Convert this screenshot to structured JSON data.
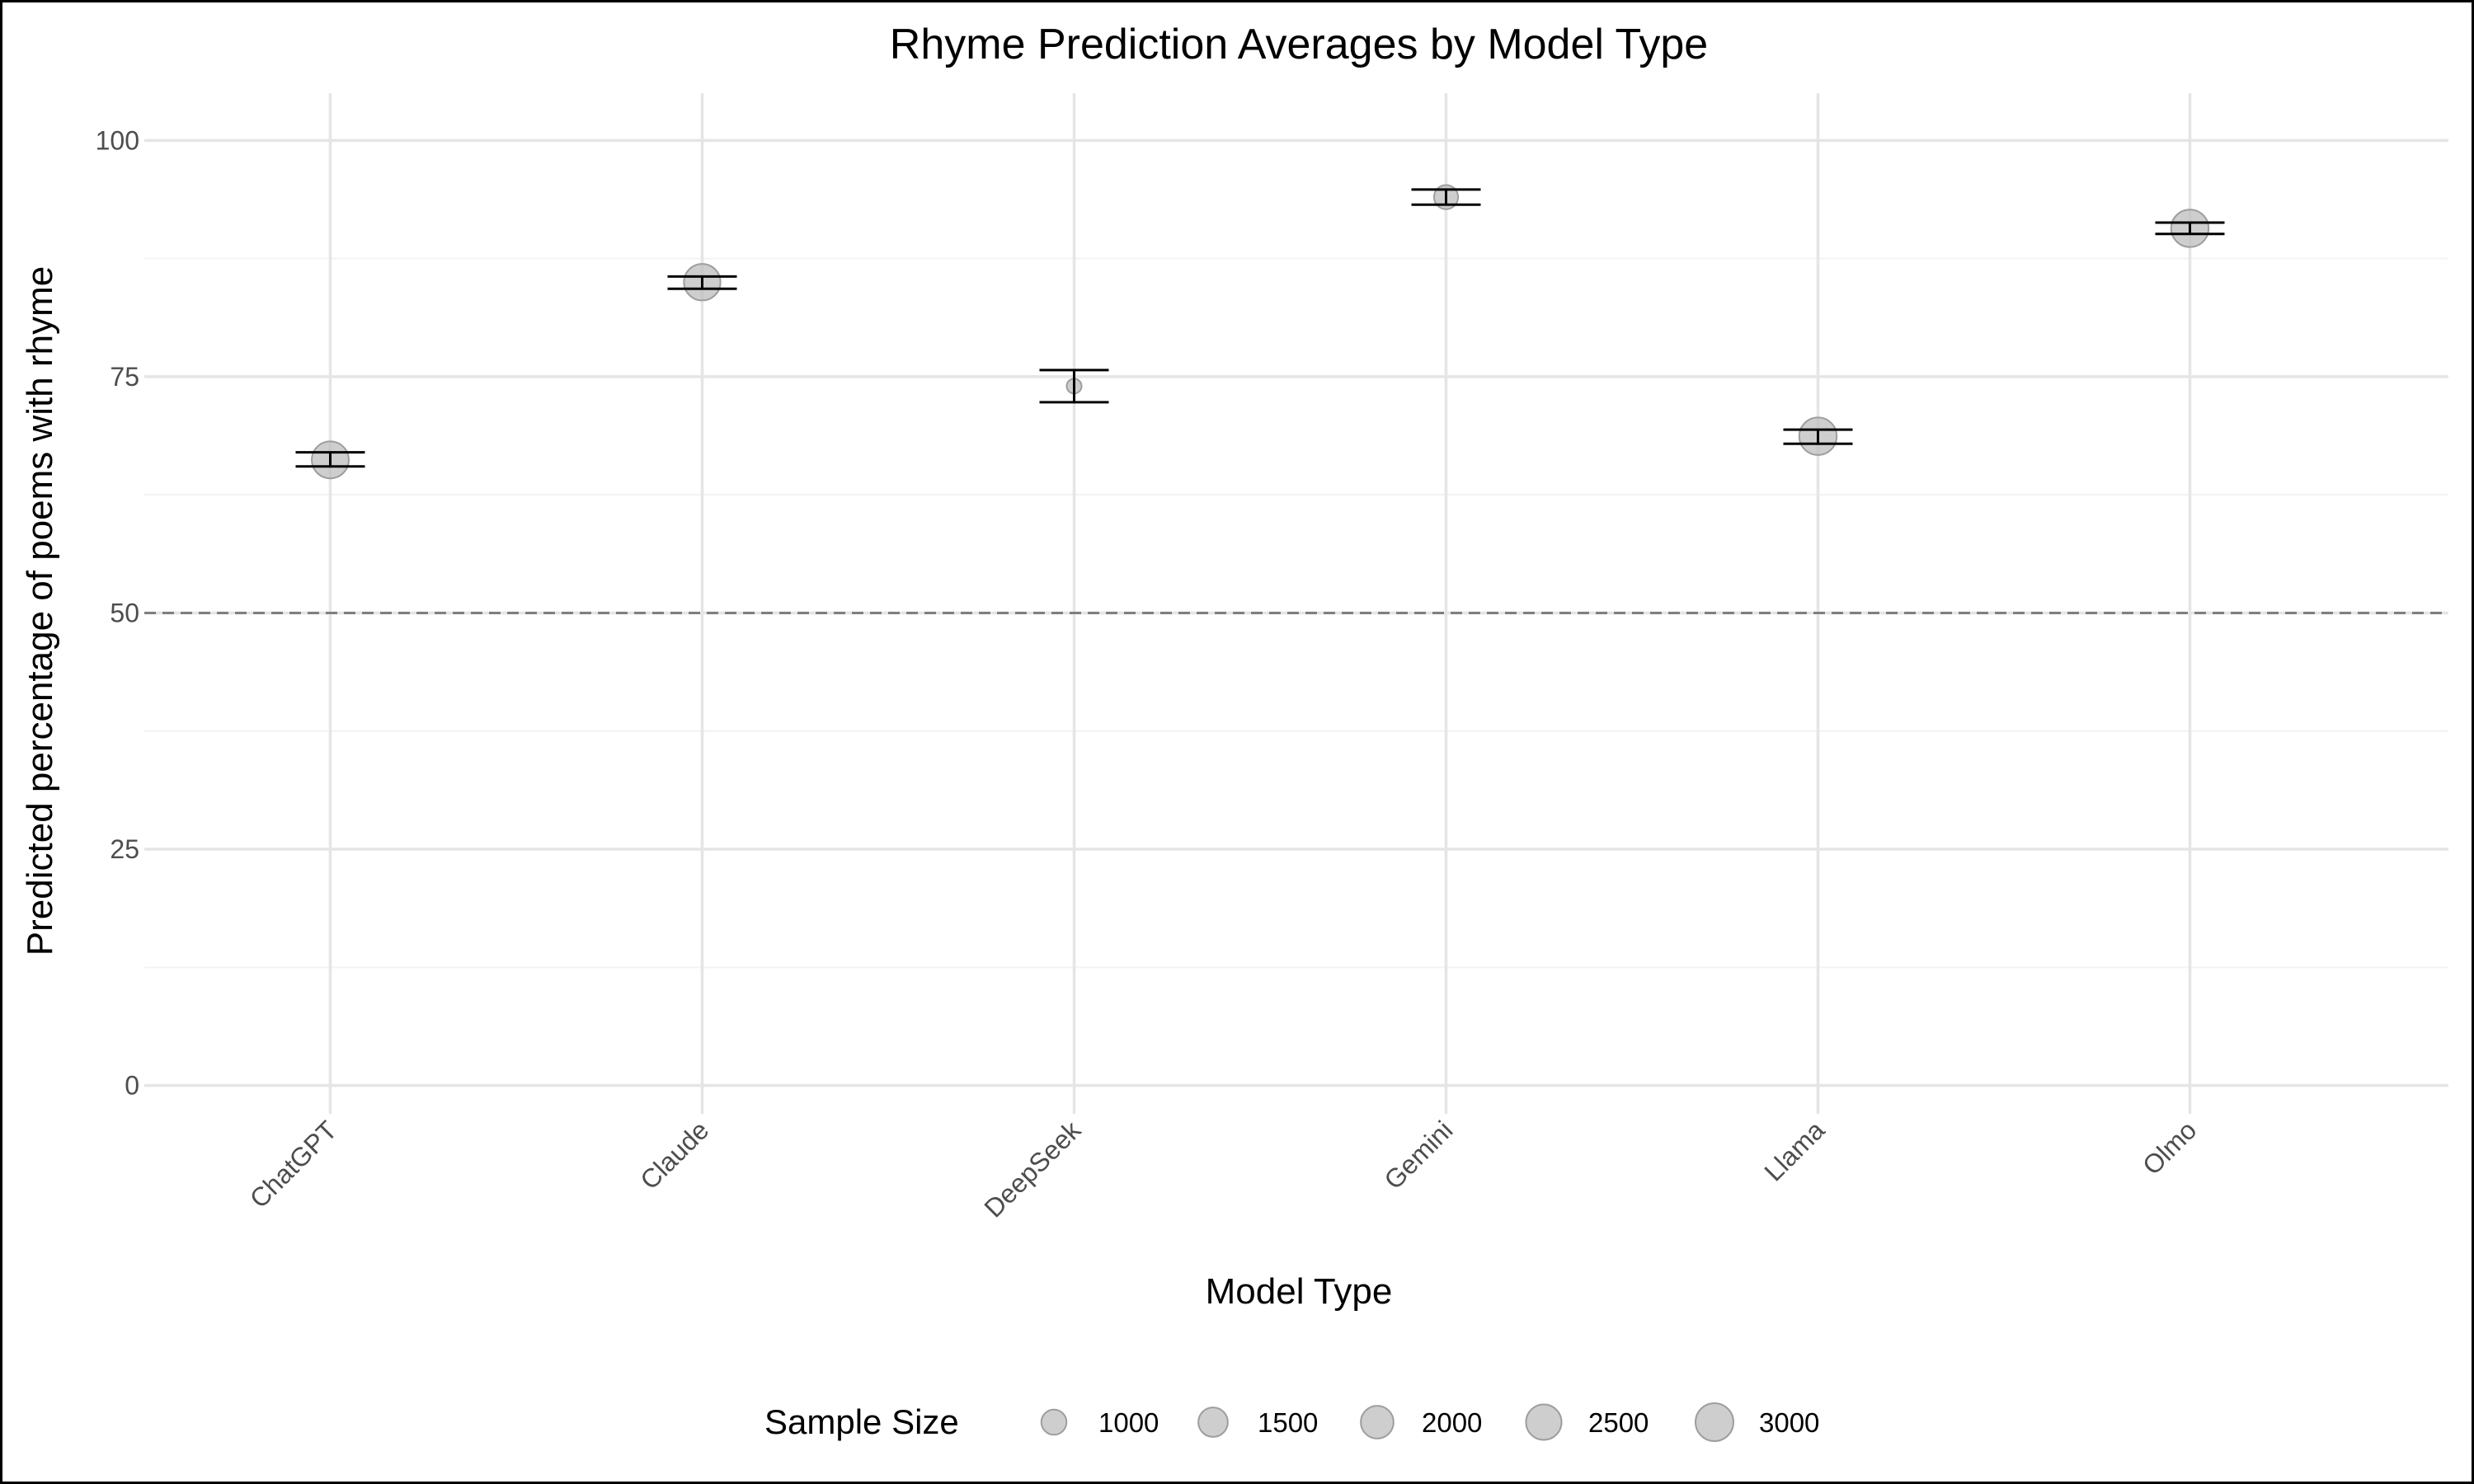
{
  "chart_data": {
    "type": "scatter",
    "title": "Rhyme Prediction Averages by Model Type",
    "xlabel": "Model Type",
    "ylabel": "Predicted percentage of poems with rhyme",
    "categories": [
      "ChatGPT",
      "Claude",
      "DeepSeek",
      "Gemini",
      "Llama",
      "Olmo"
    ],
    "ylim": [
      -3,
      105
    ],
    "yticks": [
      0,
      25,
      50,
      75,
      100
    ],
    "reference_line": {
      "y": 50,
      "style": "dashed"
    },
    "grid": true,
    "points": [
      {
        "category": "ChatGPT",
        "mean": 66.2,
        "ci_low": 65.5,
        "ci_high": 67.0,
        "n": 2800
      },
      {
        "category": "Claude",
        "mean": 85.0,
        "ci_low": 84.3,
        "ci_high": 85.6,
        "n": 2700
      },
      {
        "category": "DeepSeek",
        "mean": 74.0,
        "ci_low": 72.3,
        "ci_high": 75.7,
        "n": 500
      },
      {
        "category": "Gemini",
        "mean": 94.0,
        "ci_low": 93.2,
        "ci_high": 94.8,
        "n": 900
      },
      {
        "category": "Llama",
        "mean": 68.7,
        "ci_low": 67.9,
        "ci_high": 69.4,
        "n": 2900
      },
      {
        "category": "Olmo",
        "mean": 90.7,
        "ci_low": 90.1,
        "ci_high": 91.3,
        "n": 2900
      }
    ],
    "legend": {
      "title": "Sample Size",
      "placement": "bottom",
      "sizes": [
        1000,
        1500,
        2000,
        2500,
        3000
      ],
      "labels": [
        "1000",
        "1500",
        "2000",
        "2500",
        "3000"
      ]
    },
    "colors": {
      "point_fill": "#bdbdbd",
      "point_stroke": "#9e9e9e",
      "error_bar": "#000000",
      "grid_major": "#e5e5e5",
      "grid_minor": "#f3f3f3",
      "reference_line": "#7f7f7f"
    }
  }
}
